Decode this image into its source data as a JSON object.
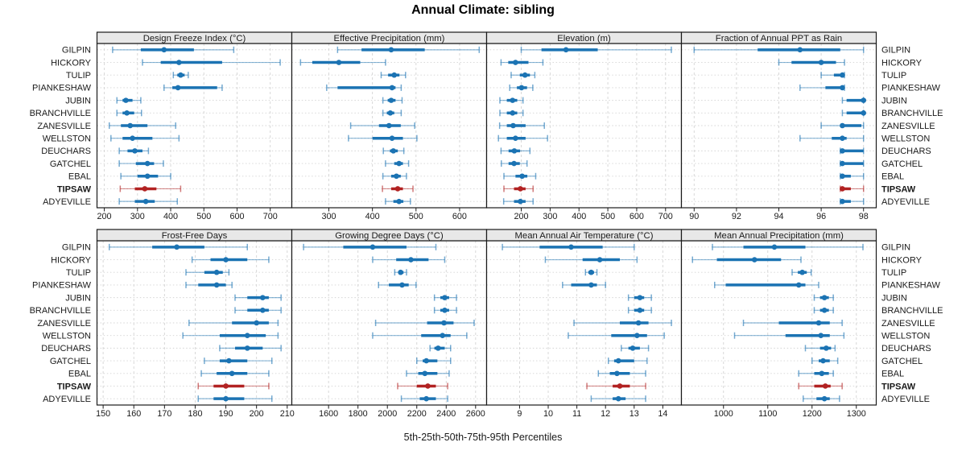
{
  "title": "Annual Climate: sibling",
  "caption": "5th-25th-50th-75th-95th Percentiles",
  "sites": [
    "GILPIN",
    "HICKORY",
    "TULIP",
    "PIANKESHAW",
    "JUBIN",
    "BRANCHVILLE",
    "ZANESVILLE",
    "WELLSTON",
    "DEUCHARS",
    "GATCHEL",
    "EBAL",
    "TIPSAW",
    "ADYEVILLE"
  ],
  "highlight_site": "TIPSAW",
  "colors": {
    "series_blue": "#1b73b3",
    "highlight_red": "#b22222",
    "panel_header_bg": "#e8e8e8",
    "panel_border": "#1a1a1a",
    "gridline": "#d4d4d4",
    "text": "#1a1a1a",
    "background": "#ffffff"
  },
  "chart_data": {
    "type": "scatter",
    "variant": "trellis-dotplot-percentile-ranges",
    "percentiles": [
      5,
      25,
      50,
      75,
      95
    ],
    "grid": "dashed",
    "legend_position": "none",
    "rows_top_to_bottom": [
      "GILPIN",
      "HICKORY",
      "TULIP",
      "PIANKESHAW",
      "JUBIN",
      "BRANCHVILLE",
      "ZANESVILLE",
      "WELLSTON",
      "DEUCHARS",
      "GATCHEL",
      "EBAL",
      "TIPSAW",
      "ADYEVILLE"
    ],
    "panels": [
      {
        "title": "Design Freeze Index (°C)",
        "grid_row": 0,
        "grid_col": 0,
        "xlim": [
          178,
          765
        ],
        "ticks": [
          200,
          300,
          400,
          500,
          600,
          700
        ],
        "values": {
          "GILPIN": [
            225,
            310,
            380,
            470,
            590
          ],
          "HICKORY": [
            315,
            370,
            425,
            555,
            730
          ],
          "TULIP": [
            408,
            420,
            430,
            442,
            453
          ],
          "PIANKESHAW": [
            380,
            405,
            422,
            540,
            555
          ],
          "JUBIN": [
            238,
            255,
            265,
            285,
            310
          ],
          "BRANCHVILLE": [
            238,
            255,
            268,
            290,
            312
          ],
          "ZANESVILLE": [
            215,
            250,
            278,
            330,
            415
          ],
          "WELLSTON": [
            220,
            255,
            285,
            345,
            425
          ],
          "DEUCHARS": [
            245,
            270,
            292,
            315,
            333
          ],
          "GATCHEL": [
            245,
            295,
            330,
            350,
            378
          ],
          "EBAL": [
            250,
            300,
            330,
            362,
            400
          ],
          "TIPSAW": [
            248,
            292,
            322,
            357,
            430
          ],
          "ADYEVILLE": [
            245,
            292,
            325,
            352,
            420
          ]
        }
      },
      {
        "title": "Effective Precipitation (mm)",
        "grid_row": 0,
        "grid_col": 1,
        "xlim": [
          215,
          662
        ],
        "ticks": [
          300,
          400,
          500,
          600
        ],
        "values": {
          "GILPIN": [
            320,
            375,
            443,
            520,
            645
          ],
          "HICKORY": [
            235,
            262,
            323,
            372,
            430
          ],
          "TULIP": [
            420,
            436,
            450,
            462,
            476
          ],
          "PIANKESHAW": [
            295,
            320,
            445,
            453,
            466
          ],
          "JUBIN": [
            424,
            435,
            443,
            453,
            468
          ],
          "BRANCHVILLE": [
            424,
            433,
            441,
            450,
            466
          ],
          "ZANESVILLE": [
            350,
            415,
            438,
            465,
            497
          ],
          "WELLSTON": [
            345,
            400,
            445,
            470,
            502
          ],
          "DEUCHARS": [
            425,
            440,
            448,
            458,
            472
          ],
          "GATCHEL": [
            430,
            450,
            461,
            470,
            483
          ],
          "EBAL": [
            424,
            443,
            455,
            465,
            478
          ],
          "TIPSAW": [
            423,
            443,
            458,
            470,
            493
          ],
          "ADYEVILLE": [
            430,
            448,
            461,
            471,
            487
          ]
        }
      },
      {
        "title": "Elevation (m)",
        "grid_row": 0,
        "grid_col": 2,
        "xlim": [
          80,
          755
        ],
        "ticks": [
          200,
          300,
          400,
          500,
          600,
          700
        ],
        "values": {
          "GILPIN": [
            200,
            270,
            355,
            465,
            720
          ],
          "HICKORY": [
            130,
            155,
            180,
            225,
            275
          ],
          "TULIP": [
            165,
            195,
            213,
            230,
            247
          ],
          "PIANKESHAW": [
            160,
            185,
            201,
            220,
            240
          ],
          "JUBIN": [
            126,
            150,
            170,
            186,
            206
          ],
          "BRANCHVILLE": [
            126,
            150,
            170,
            186,
            206
          ],
          "ZANESVILLE": [
            125,
            150,
            172,
            215,
            280
          ],
          "WELLSTON": [
            121,
            150,
            180,
            215,
            291
          ],
          "DEUCHARS": [
            130,
            156,
            176,
            196,
            230
          ],
          "GATCHEL": [
            131,
            156,
            175,
            195,
            220
          ],
          "EBAL": [
            140,
            180,
            203,
            221,
            250
          ],
          "TIPSAW": [
            140,
            175,
            197,
            215,
            241
          ],
          "ADYEVILLE": [
            139,
            175,
            197,
            215,
            241
          ]
        }
      },
      {
        "title": "Fraction of Annual PPT as Rain",
        "grid_row": 0,
        "grid_col": 3,
        "xlim": [
          89.4,
          98.6
        ],
        "ticks": [
          90,
          92,
          94,
          96,
          98
        ],
        "values": {
          "GILPIN": [
            90,
            93,
            95,
            96.9,
            98
          ],
          "HICKORY": [
            94,
            94.6,
            96,
            96.7,
            97.1
          ],
          "TULIP": [
            96,
            96.6,
            97,
            97,
            97.1
          ],
          "PIANKESHAW": [
            95,
            96.2,
            97,
            97,
            97.1
          ],
          "JUBIN": [
            97,
            97.2,
            98,
            98,
            98
          ],
          "BRANCHVILLE": [
            97,
            97.2,
            98,
            98,
            98
          ],
          "ZANESVILLE": [
            96,
            96.9,
            97,
            97.9,
            98
          ],
          "WELLSTON": [
            95,
            96.5,
            97,
            97.2,
            98
          ],
          "DEUCHARS": [
            96.9,
            97,
            97,
            98,
            98
          ],
          "GATCHEL": [
            96.9,
            97,
            97,
            98,
            98
          ],
          "EBAL": [
            96.9,
            97,
            97,
            97.4,
            98
          ],
          "TIPSAW": [
            96.9,
            97,
            97,
            97.4,
            98
          ],
          "ADYEVILLE": [
            96.9,
            97,
            97,
            97.4,
            98
          ]
        }
      },
      {
        "title": "Frost-Free Days",
        "grid_row": 1,
        "grid_col": 0,
        "xlim": [
          148,
          211.5
        ],
        "ticks": [
          150,
          160,
          170,
          180,
          190,
          200,
          210
        ],
        "values": {
          "GILPIN": [
            152,
            166,
            174,
            183,
            197
          ],
          "HICKORY": [
            179,
            185,
            190,
            197,
            204
          ],
          "TULIP": [
            177,
            183,
            187,
            189,
            191
          ],
          "PIANKESHAW": [
            177,
            181,
            187,
            190,
            192
          ],
          "JUBIN": [
            193,
            197,
            202,
            204,
            208
          ],
          "BRANCHVILLE": [
            193,
            197,
            202,
            204,
            208
          ],
          "ZANESVILLE": [
            178,
            192,
            200,
            204,
            207
          ],
          "WELLSTON": [
            176,
            188,
            197,
            203,
            207
          ],
          "DEUCHARS": [
            188,
            193,
            197,
            202,
            208
          ],
          "GATCHEL": [
            183,
            188,
            191,
            197,
            205
          ],
          "EBAL": [
            182,
            187,
            192,
            197,
            204
          ],
          "TIPSAW": [
            181,
            186,
            190,
            196,
            204
          ],
          "ADYEVILLE": [
            181,
            186,
            190,
            196,
            205
          ]
        }
      },
      {
        "title": "Growing Degree Days (°C)",
        "grid_row": 1,
        "grid_col": 1,
        "xlim": [
          1350,
          2675
        ],
        "ticks": [
          1600,
          1800,
          2000,
          2200,
          2400,
          2600
        ],
        "values": {
          "GILPIN": [
            1430,
            1700,
            1900,
            2130,
            2330
          ],
          "HICKORY": [
            1900,
            2060,
            2160,
            2280,
            2390
          ],
          "TULIP": [
            2050,
            2075,
            2090,
            2110,
            2130
          ],
          "PIANKESHAW": [
            1940,
            2010,
            2100,
            2145,
            2195
          ],
          "JUBIN": [
            2320,
            2360,
            2390,
            2420,
            2470
          ],
          "BRANCHVILLE": [
            2320,
            2360,
            2390,
            2420,
            2470
          ],
          "ZANESVILLE": [
            1920,
            2270,
            2385,
            2450,
            2590
          ],
          "WELLSTON": [
            1900,
            2230,
            2375,
            2430,
            2540
          ],
          "DEUCHARS": [
            2290,
            2320,
            2345,
            2390,
            2430
          ],
          "GATCHEL": [
            2200,
            2240,
            2265,
            2340,
            2430
          ],
          "EBAL": [
            2130,
            2210,
            2255,
            2340,
            2420
          ],
          "TIPSAW": [
            2070,
            2200,
            2275,
            2330,
            2410
          ],
          "ADYEVILLE": [
            2095,
            2220,
            2265,
            2330,
            2410
          ]
        }
      },
      {
        "title": "Mean Annual Air Temperature (°C)",
        "grid_row": 1,
        "grid_col": 2,
        "xlim": [
          7.85,
          14.65
        ],
        "ticks": [
          9,
          10,
          11,
          12,
          13,
          14
        ],
        "values": {
          "GILPIN": [
            8.4,
            9.7,
            10.8,
            11.9,
            13.0
          ],
          "HICKORY": [
            9.9,
            11.2,
            11.8,
            12.5,
            13.1
          ],
          "TULIP": [
            11.3,
            11.4,
            11.5,
            11.6,
            11.7
          ],
          "PIANKESHAW": [
            10.5,
            10.8,
            11.5,
            11.7,
            12.0
          ],
          "JUBIN": [
            12.8,
            13.0,
            13.2,
            13.35,
            13.6
          ],
          "BRANCHVILLE": [
            12.8,
            13.0,
            13.2,
            13.35,
            13.6
          ],
          "ZANESVILLE": [
            10.9,
            12.5,
            13.15,
            13.5,
            14.3
          ],
          "WELLSTON": [
            10.7,
            12.2,
            13.1,
            13.45,
            14.05
          ],
          "DEUCHARS": [
            12.55,
            12.8,
            12.95,
            13.2,
            13.5
          ],
          "GATCHEL": [
            12.1,
            12.3,
            12.45,
            13.0,
            13.45
          ],
          "EBAL": [
            11.75,
            12.15,
            12.4,
            12.85,
            13.4
          ],
          "TIPSAW": [
            11.35,
            12.25,
            12.5,
            12.85,
            13.4
          ],
          "ADYEVILLE": [
            11.5,
            12.25,
            12.45,
            12.7,
            13.4
          ]
        }
      },
      {
        "title": "Mean Annual Precipitation (mm)",
        "grid_row": 1,
        "grid_col": 3,
        "xlim": [
          905,
          1345
        ],
        "ticks": [
          1000,
          1100,
          1200,
          1300
        ],
        "values": {
          "GILPIN": [
            975,
            1045,
            1115,
            1185,
            1315
          ],
          "HICKORY": [
            930,
            985,
            1070,
            1130,
            1175
          ],
          "TULIP": [
            1155,
            1168,
            1178,
            1188,
            1198
          ],
          "PIANKESHAW": [
            980,
            1005,
            1170,
            1185,
            1215
          ],
          "JUBIN": [
            1205,
            1218,
            1228,
            1238,
            1248
          ],
          "BRANCHVILLE": [
            1205,
            1218,
            1228,
            1238,
            1248
          ],
          "ZANESVILLE": [
            1045,
            1125,
            1215,
            1240,
            1268
          ],
          "WELLSTON": [
            1025,
            1140,
            1220,
            1240,
            1272
          ],
          "DEUCHARS": [
            1185,
            1218,
            1232,
            1243,
            1252
          ],
          "GATCHEL": [
            1200,
            1215,
            1225,
            1240,
            1258
          ],
          "EBAL": [
            1170,
            1205,
            1222,
            1238,
            1248
          ],
          "TIPSAW": [
            1170,
            1205,
            1230,
            1242,
            1268
          ],
          "ADYEVILLE": [
            1180,
            1210,
            1228,
            1240,
            1262
          ]
        }
      }
    ]
  }
}
